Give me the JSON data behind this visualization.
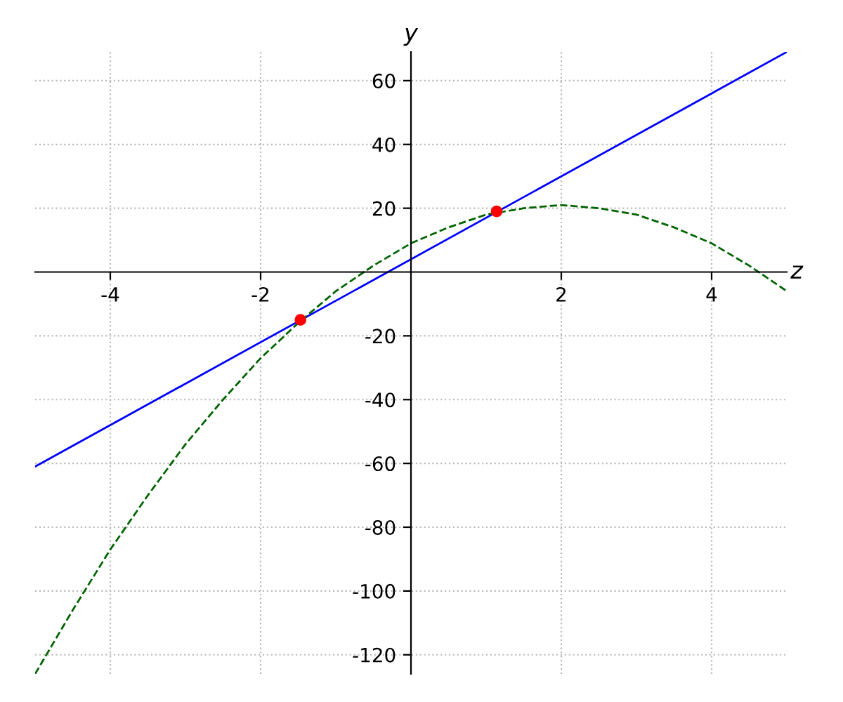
{
  "chart_data": {
    "type": "line",
    "xlabel": "z",
    "ylabel": "y",
    "xlim": [
      -5,
      5
    ],
    "ylim": [
      -126,
      69
    ],
    "xticks": [
      -4,
      -2,
      2,
      4
    ],
    "yticks": [
      -120,
      -100,
      -80,
      -60,
      -40,
      -20,
      20,
      40,
      60
    ],
    "grid": true,
    "legend": false,
    "series": [
      {
        "color": "#0000ff",
        "line_style": "solid",
        "x": [
          -5,
          5
        ],
        "values": [
          -61,
          69
        ]
      },
      {
        "color": "#006400",
        "line_style": "dashed",
        "x": [
          -5,
          -4.5,
          -4,
          -3.5,
          -3,
          -2.5,
          -2,
          -1.5,
          -1,
          -0.5,
          0,
          0.5,
          1,
          1.5,
          2,
          2.5,
          3,
          3.5,
          4,
          4.5,
          5
        ],
        "values": [
          -126,
          -106,
          -87,
          -70,
          -54,
          -40,
          -27,
          -16,
          -6,
          2,
          9,
          14,
          18,
          20,
          21,
          20,
          18,
          14,
          9,
          2,
          -6
        ]
      },
      {
        "type": "scatter",
        "color": "#ff0000",
        "marker": "circle",
        "x": [
          -1.47,
          1.14
        ],
        "values": [
          -15,
          19
        ]
      }
    ]
  }
}
